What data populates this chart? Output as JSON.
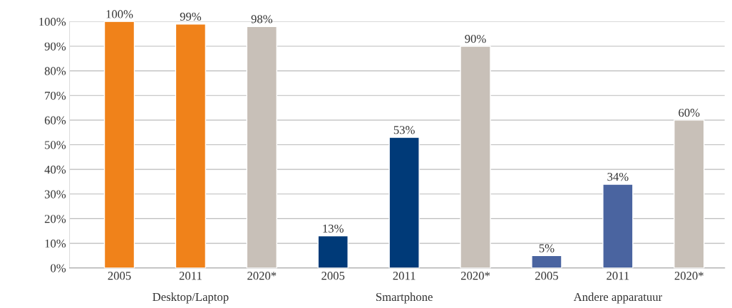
{
  "chart_data": {
    "type": "bar",
    "categories": [
      "2005",
      "2011",
      "2020*",
      "2005",
      "2011",
      "2020*",
      "2005",
      "2011",
      "2020*"
    ],
    "values": [
      100,
      99,
      98,
      13,
      53,
      90,
      5,
      34,
      60
    ],
    "colors": [
      "#f0821a",
      "#f0821a",
      "#c8c0b8",
      "#003a78",
      "#003a78",
      "#c8c0b8",
      "#4a64a0",
      "#4a64a0",
      "#c8c0b8"
    ],
    "value_labels": [
      "100%",
      "99%",
      "98%",
      "13%",
      "53%",
      "90%",
      "5%",
      "34%",
      "60%"
    ],
    "annotations": [
      "Desktop/Laptop",
      "Smartphone",
      "Andere apparatuur"
    ],
    "ylim": [
      0,
      100
    ],
    "yticks": [
      {
        "value": 0,
        "label": "0%"
      },
      {
        "value": 10,
        "label": "10%"
      },
      {
        "value": 20,
        "label": "20%"
      },
      {
        "value": 30,
        "label": "30%"
      },
      {
        "value": 40,
        "label": "40%"
      },
      {
        "value": 50,
        "label": "50%"
      },
      {
        "value": 60,
        "label": "60%"
      },
      {
        "value": 70,
        "label": "70%"
      },
      {
        "value": 80,
        "label": "80%"
      },
      {
        "value": 90,
        "label": "90%"
      },
      {
        "value": 100,
        "label": "100%"
      }
    ],
    "grid": "y"
  }
}
